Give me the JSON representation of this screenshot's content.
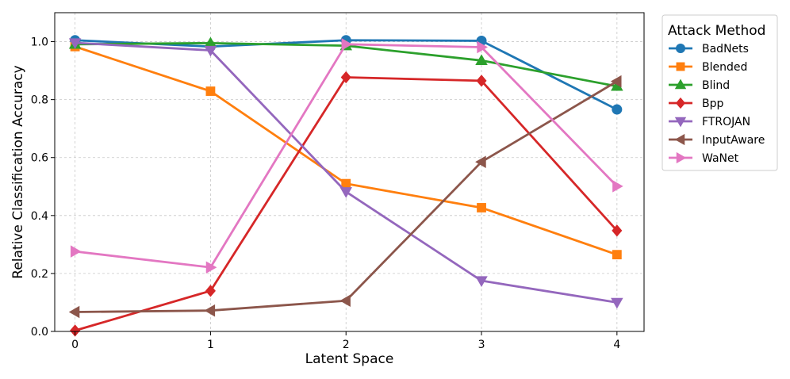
{
  "chart_data": {
    "type": "line",
    "xlabel": "Latent Space",
    "ylabel": "Relative Classification Accuracy",
    "x": [
      0,
      1,
      2,
      3,
      4
    ],
    "xlim": [
      -0.15,
      4.2
    ],
    "ylim": [
      0.0,
      1.1
    ],
    "yticks": [
      0.0,
      0.2,
      0.4,
      0.6,
      0.8,
      1.0
    ],
    "ytick_labels": [
      "0.0",
      "0.2",
      "0.4",
      "0.6",
      "0.8",
      "1.0"
    ],
    "xtick_labels": [
      "0",
      "1",
      "2",
      "3",
      "4"
    ],
    "grid": true,
    "legend_title": "Attack Method",
    "legend_position": "outside-right",
    "series": [
      {
        "name": "BadNets",
        "color": "#1f77b4",
        "marker": "circle",
        "values": [
          1.005,
          0.983,
          1.005,
          1.003,
          0.766
        ]
      },
      {
        "name": "Blended",
        "color": "#ff7f0e",
        "marker": "square",
        "values": [
          0.983,
          0.829,
          0.51,
          0.427,
          0.265
        ]
      },
      {
        "name": "Blind",
        "color": "#2ca02c",
        "marker": "triangle-up",
        "values": [
          0.991,
          0.995,
          0.986,
          0.935,
          0.846
        ]
      },
      {
        "name": "Bpp",
        "color": "#d62728",
        "marker": "diamond",
        "values": [
          0.003,
          0.14,
          0.877,
          0.865,
          0.348
        ]
      },
      {
        "name": "FTROJAN",
        "color": "#9467bd",
        "marker": "triangle-down",
        "values": [
          0.996,
          0.97,
          0.482,
          0.175,
          0.1
        ]
      },
      {
        "name": "InputAware",
        "color": "#8c564b",
        "marker": "triangle-left",
        "values": [
          0.067,
          0.072,
          0.106,
          0.585,
          0.863
        ]
      },
      {
        "name": "WaNet",
        "color": "#e377c2",
        "marker": "triangle-right",
        "values": [
          0.276,
          0.221,
          0.991,
          0.981,
          0.501
        ]
      }
    ]
  }
}
